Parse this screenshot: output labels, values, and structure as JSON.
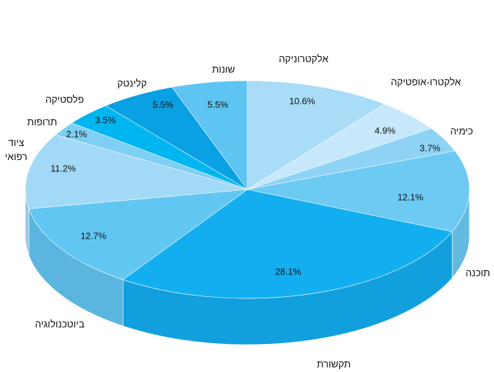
{
  "chart_data": {
    "type": "pie3d",
    "categories": [
      "אלקטרוניקה",
      "אלקטרו-אופטיקה",
      "כימיה",
      "תוכנה",
      "תקשורת",
      "ביוטכנולוגיה",
      "ציוד רפואי",
      "תרופות",
      "פלסטיקה",
      "קלינטק",
      "שונות"
    ],
    "values": [
      10.6,
      4.9,
      3.7,
      12.1,
      28.1,
      12.7,
      11.2,
      2.1,
      3.5,
      5.5,
      5.5
    ],
    "value_labels": [
      "10.6%",
      "4.9%",
      "3.7%",
      "12.1%",
      "28.1%",
      "12.7%",
      "11.2%",
      "2.1%",
      "3.5%",
      "5.5%",
      "5.5%"
    ],
    "colors": [
      "#a8dcf7",
      "#c6e8fa",
      "#8ed3f5",
      "#6ccaf3",
      "#12aef0",
      "#62c6f2",
      "#a2d9f6",
      "#7ecff4",
      "#00b6f1",
      "#0aa0e4",
      "#5ec4f2"
    ]
  }
}
